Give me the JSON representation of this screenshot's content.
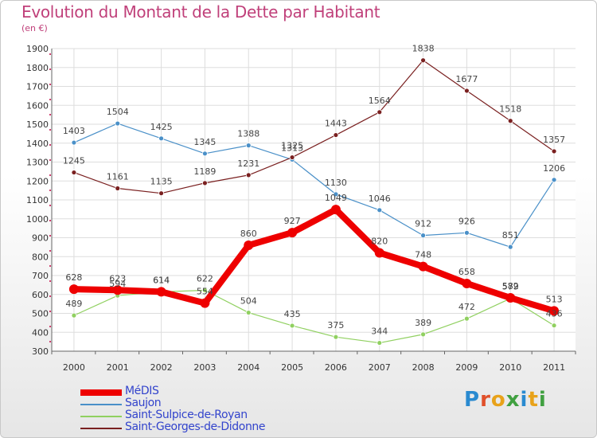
{
  "title": "Evolution du Montant de la Dette par Habitant",
  "subtitle": "(en €)",
  "logo": {
    "text": "Proxiti",
    "letter_colors": [
      "#2a8ad0",
      "#e0502a",
      "#e8a21a",
      "#40a040",
      "#2a8ad0",
      "#e8a21a",
      "#40a040"
    ]
  },
  "chart_data": {
    "type": "line",
    "title": "Evolution du Montant de la Dette par Habitant",
    "subtitle": "(en €)",
    "x": [
      "2000",
      "2001",
      "2002",
      "2003",
      "2004",
      "2005",
      "2006",
      "2007",
      "2008",
      "2009",
      "2010",
      "2011"
    ],
    "ylim": [
      300,
      1900
    ],
    "yticks": [
      300,
      400,
      500,
      600,
      700,
      800,
      900,
      1000,
      1100,
      1200,
      1300,
      1400,
      1500,
      1600,
      1700,
      1800,
      1900
    ],
    "grid": true,
    "legend_position": "bottom-left",
    "series": [
      {
        "name": "MéDIS",
        "color": "#ee0000",
        "values": [
          628,
          623,
          614,
          554,
          860,
          927,
          1049,
          820,
          748,
          658,
          582,
          513
        ]
      },
      {
        "name": "Saujon",
        "color": "#4a90c8",
        "values": [
          1403,
          1504,
          1425,
          1345,
          1388,
          1313,
          1130,
          1046,
          912,
          926,
          851,
          1206
        ]
      },
      {
        "name": "Saint-Sulpice-de-Royan",
        "color": "#90d060",
        "values": [
          489,
          594,
          614,
          622,
          504,
          435,
          375,
          344,
          389,
          472,
          579,
          436
        ]
      },
      {
        "name": "Saint-Georges-de-Didonne",
        "color": "#7a2020",
        "values": [
          1245,
          1161,
          1135,
          1189,
          1231,
          1325,
          1443,
          1564,
          1838,
          1677,
          1518,
          1357
        ]
      }
    ]
  }
}
